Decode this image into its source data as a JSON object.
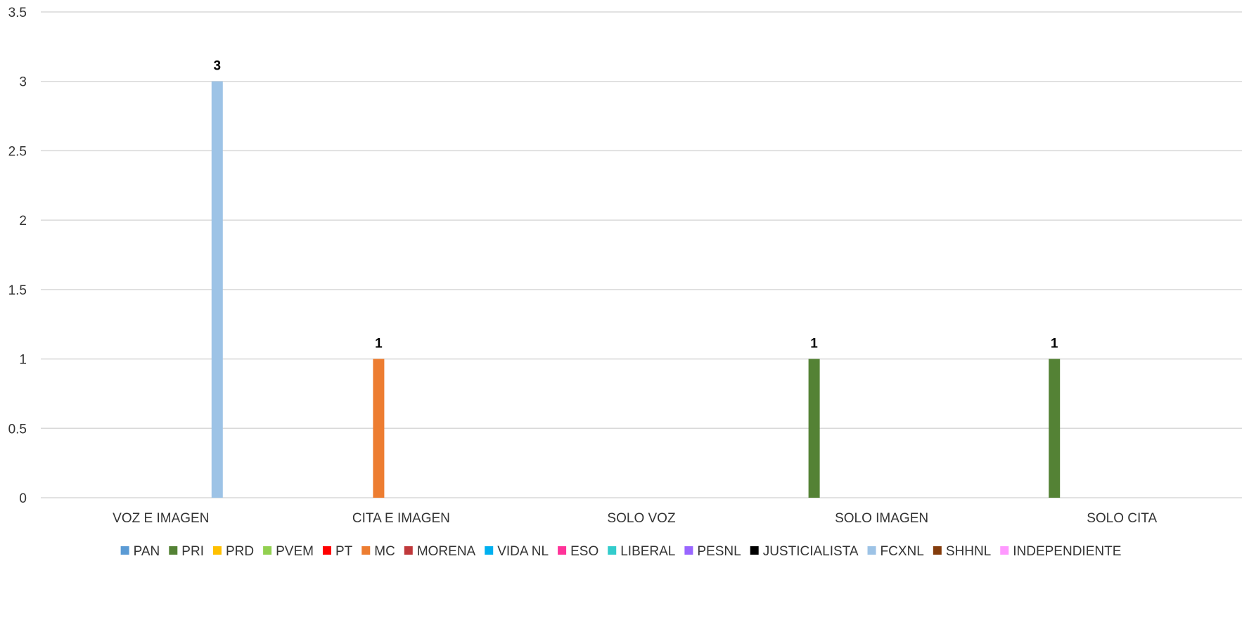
{
  "chart_data": {
    "type": "bar",
    "title": "",
    "xlabel": "",
    "ylabel": "",
    "ylim": [
      0,
      3.5
    ],
    "yticks": [
      "0",
      "0.5",
      "1",
      "1.5",
      "2",
      "2.5",
      "3",
      "3.5"
    ],
    "grid": true,
    "legend_position": "bottom",
    "categories": [
      "VOZ E IMAGEN",
      "CITA E IMAGEN",
      "SOLO VOZ",
      "SOLO IMAGEN",
      "SOLO CITA"
    ],
    "series": [
      {
        "name": "PAN",
        "color": "#5B9BD5",
        "values": [
          0,
          0,
          0,
          0,
          0
        ]
      },
      {
        "name": "PRI",
        "color": "#548235",
        "values": [
          0,
          0,
          0,
          1,
          1
        ]
      },
      {
        "name": "PRD",
        "color": "#FFC000",
        "values": [
          0,
          0,
          0,
          0,
          0
        ]
      },
      {
        "name": "PVEM",
        "color": "#92D050",
        "values": [
          0,
          0,
          0,
          0,
          0
        ]
      },
      {
        "name": "PT",
        "color": "#FF0000",
        "values": [
          0,
          0,
          0,
          0,
          0
        ]
      },
      {
        "name": "MC",
        "color": "#ED7D31",
        "values": [
          0,
          1,
          0,
          0,
          0
        ]
      },
      {
        "name": "MORENA",
        "color": "#C0393B",
        "values": [
          0,
          0,
          0,
          0,
          0
        ]
      },
      {
        "name": "VIDA NL",
        "color": "#00B0F0",
        "values": [
          0,
          0,
          0,
          0,
          0
        ]
      },
      {
        "name": "ESO",
        "color": "#FF3399",
        "values": [
          0,
          0,
          0,
          0,
          0
        ]
      },
      {
        "name": "LIBERAL",
        "color": "#33CCCC",
        "values": [
          0,
          0,
          0,
          0,
          0
        ]
      },
      {
        "name": "PESNL",
        "color": "#9966FF",
        "values": [
          0,
          0,
          0,
          0,
          0
        ]
      },
      {
        "name": "JUSTICIALISTA",
        "color": "#000000",
        "values": [
          0,
          0,
          0,
          0,
          0
        ]
      },
      {
        "name": "FCXNL",
        "color": "#9DC3E6",
        "values": [
          3,
          0,
          0,
          0,
          0
        ]
      },
      {
        "name": "SHHNL",
        "color": "#843C0C",
        "values": [
          0,
          0,
          0,
          0,
          0
        ]
      },
      {
        "name": "INDEPENDIENTE",
        "color": "#FF99FF",
        "values": [
          0,
          0,
          0,
          0,
          0
        ]
      }
    ]
  }
}
